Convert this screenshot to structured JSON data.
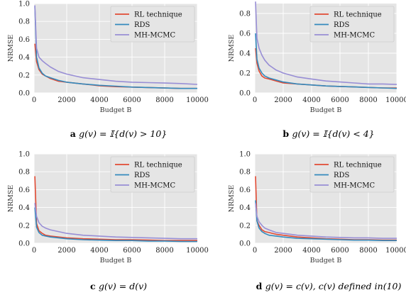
{
  "figure": {
    "colors": {
      "RL technique": "#e24a33",
      "RDS": "#348abd",
      "MH-MCMC": "#988ed5",
      "panel_bg": "#e5e5e5",
      "grid": "#ffffff"
    }
  },
  "chart_data": [
    {
      "type": "line",
      "panel_letter": "a",
      "caption": "g(v) = 𝕀{d(v) > 10}",
      "xlabel": "Budget B",
      "ylabel": "NRMSE",
      "xlim": [
        0,
        10000
      ],
      "ylim": [
        0,
        1.0
      ],
      "xticks": [
        0,
        2000,
        4000,
        6000,
        8000,
        10000
      ],
      "yticks": [
        0.0,
        0.2,
        0.4,
        0.6,
        0.8,
        1.0
      ],
      "ytick_labels": [
        "0.0",
        "0.2",
        "0.4",
        "0.6",
        "0.8",
        "1.0"
      ],
      "grid": true,
      "legend_position": "top-right",
      "series": [
        {
          "name": "RL technique",
          "x": [
            50,
            150,
            300,
            500,
            700,
            1000,
            1500,
            2000,
            3000,
            4000,
            5000,
            6000,
            7000,
            8000,
            9000,
            10000
          ],
          "values": [
            0.55,
            0.35,
            0.26,
            0.21,
            0.19,
            0.16,
            0.13,
            0.12,
            0.1,
            0.08,
            0.07,
            0.065,
            0.06,
            0.055,
            0.05,
            0.05
          ]
        },
        {
          "name": "RDS",
          "x": [
            50,
            150,
            300,
            500,
            700,
            1000,
            1500,
            2000,
            3000,
            4000,
            5000,
            6000,
            7000,
            8000,
            9000,
            10000
          ],
          "values": [
            0.97,
            0.4,
            0.28,
            0.22,
            0.19,
            0.17,
            0.14,
            0.12,
            0.1,
            0.085,
            0.075,
            0.065,
            0.06,
            0.055,
            0.05,
            0.05
          ]
        },
        {
          "name": "MH-MCMC",
          "x": [
            50,
            150,
            300,
            500,
            700,
            1000,
            1500,
            2000,
            3000,
            4000,
            5000,
            6000,
            7000,
            8000,
            9000,
            10000
          ],
          "values": [
            0.98,
            0.5,
            0.4,
            0.36,
            0.33,
            0.29,
            0.24,
            0.21,
            0.17,
            0.15,
            0.13,
            0.12,
            0.115,
            0.11,
            0.105,
            0.095
          ]
        }
      ]
    },
    {
      "type": "line",
      "panel_letter": "b",
      "caption": "g(v) = 𝕀{d(v) < 4}",
      "xlabel": "Budget B",
      "ylabel": "NRMSE",
      "xlim": [
        0,
        10000
      ],
      "ylim": [
        0,
        0.9
      ],
      "xticks": [
        0,
        2000,
        4000,
        6000,
        8000,
        10000
      ],
      "yticks": [
        0.0,
        0.2,
        0.4,
        0.6,
        0.8
      ],
      "ytick_labels": [
        "0.0",
        "0.2",
        "0.4",
        "0.6",
        "0.8"
      ],
      "grid": true,
      "legend_position": "top-right",
      "series": [
        {
          "name": "RL technique",
          "x": [
            50,
            150,
            300,
            500,
            700,
            1000,
            1500,
            2000,
            3000,
            4000,
            5000,
            6000,
            7000,
            8000,
            9000,
            10000
          ],
          "values": [
            0.45,
            0.3,
            0.22,
            0.17,
            0.15,
            0.14,
            0.12,
            0.1,
            0.09,
            0.08,
            0.07,
            0.065,
            0.06,
            0.055,
            0.05,
            0.05
          ]
        },
        {
          "name": "RDS",
          "x": [
            50,
            150,
            300,
            500,
            700,
            1000,
            1500,
            2000,
            3000,
            4000,
            5000,
            6000,
            7000,
            8000,
            9000,
            10000
          ],
          "values": [
            0.6,
            0.34,
            0.25,
            0.2,
            0.17,
            0.15,
            0.13,
            0.11,
            0.09,
            0.08,
            0.07,
            0.065,
            0.06,
            0.055,
            0.05,
            0.045
          ]
        },
        {
          "name": "MH-MCMC",
          "x": [
            50,
            150,
            300,
            500,
            700,
            1000,
            1500,
            2000,
            3000,
            4000,
            5000,
            6000,
            7000,
            8000,
            9000,
            10000
          ],
          "values": [
            0.92,
            0.55,
            0.45,
            0.38,
            0.33,
            0.28,
            0.23,
            0.2,
            0.16,
            0.14,
            0.12,
            0.11,
            0.1,
            0.09,
            0.09,
            0.085
          ]
        }
      ]
    },
    {
      "type": "line",
      "panel_letter": "c",
      "caption": "g(v) = d(v)",
      "xlabel": "Budget B",
      "ylabel": "NRMSE",
      "xlim": [
        0,
        10000
      ],
      "ylim": [
        0,
        1.0
      ],
      "xticks": [
        0,
        2000,
        4000,
        6000,
        8000,
        10000
      ],
      "yticks": [
        0.0,
        0.2,
        0.4,
        0.6,
        0.8,
        1.0
      ],
      "ytick_labels": [
        "0.0",
        "0.2",
        "0.4",
        "0.6",
        "0.8",
        "1.0"
      ],
      "grid": true,
      "legend_position": "top-right",
      "series": [
        {
          "name": "RL technique",
          "x": [
            50,
            150,
            300,
            500,
            700,
            1000,
            1500,
            2000,
            3000,
            4000,
            5000,
            6000,
            7000,
            8000,
            9000,
            10000
          ],
          "values": [
            0.75,
            0.22,
            0.14,
            0.11,
            0.09,
            0.08,
            0.07,
            0.06,
            0.05,
            0.045,
            0.04,
            0.04,
            0.035,
            0.03,
            0.03,
            0.03
          ]
        },
        {
          "name": "RDS",
          "x": [
            50,
            150,
            300,
            500,
            700,
            1000,
            1500,
            2000,
            3000,
            4000,
            5000,
            6000,
            7000,
            8000,
            9000,
            10000
          ],
          "values": [
            0.4,
            0.18,
            0.12,
            0.09,
            0.08,
            0.07,
            0.06,
            0.05,
            0.04,
            0.035,
            0.03,
            0.03,
            0.025,
            0.025,
            0.02,
            0.02
          ]
        },
        {
          "name": "MH-MCMC",
          "x": [
            50,
            150,
            300,
            500,
            700,
            1000,
            1500,
            2000,
            3000,
            4000,
            5000,
            6000,
            7000,
            8000,
            9000,
            10000
          ],
          "values": [
            0.45,
            0.3,
            0.23,
            0.19,
            0.17,
            0.15,
            0.13,
            0.11,
            0.09,
            0.08,
            0.07,
            0.065,
            0.06,
            0.055,
            0.05,
            0.05
          ]
        }
      ]
    },
    {
      "type": "line",
      "panel_letter": "d",
      "caption": "g(v) = c(v), c(v) defined in(10)",
      "xlabel": "Budget B",
      "ylabel": "NRMSE",
      "xlim": [
        0,
        10000
      ],
      "ylim": [
        0,
        1.0
      ],
      "xticks": [
        0,
        2000,
        4000,
        6000,
        8000,
        10000
      ],
      "yticks": [
        0.0,
        0.2,
        0.4,
        0.6,
        0.8,
        1.0
      ],
      "ytick_labels": [
        "0.0",
        "0.2",
        "0.4",
        "0.6",
        "0.8",
        "1.0"
      ],
      "grid": true,
      "legend_position": "top-right",
      "series": [
        {
          "name": "RL technique",
          "x": [
            50,
            150,
            300,
            500,
            700,
            1000,
            1500,
            2000,
            3000,
            4000,
            5000,
            6000,
            7000,
            8000,
            9000,
            10000
          ],
          "values": [
            0.75,
            0.25,
            0.2,
            0.15,
            0.13,
            0.12,
            0.1,
            0.09,
            0.07,
            0.06,
            0.05,
            0.045,
            0.04,
            0.04,
            0.035,
            0.035
          ]
        },
        {
          "name": "RDS",
          "x": [
            50,
            150,
            300,
            500,
            700,
            1000,
            1500,
            2000,
            3000,
            4000,
            5000,
            6000,
            7000,
            8000,
            9000,
            10000
          ],
          "values": [
            0.48,
            0.25,
            0.17,
            0.13,
            0.11,
            0.09,
            0.08,
            0.07,
            0.055,
            0.05,
            0.045,
            0.04,
            0.035,
            0.035,
            0.03,
            0.03
          ]
        },
        {
          "name": "MH-MCMC",
          "x": [
            50,
            150,
            300,
            500,
            700,
            1000,
            1500,
            2000,
            3000,
            4000,
            5000,
            6000,
            7000,
            8000,
            9000,
            10000
          ],
          "values": [
            0.45,
            0.3,
            0.24,
            0.2,
            0.17,
            0.15,
            0.12,
            0.11,
            0.09,
            0.08,
            0.07,
            0.065,
            0.06,
            0.06,
            0.055,
            0.055
          ]
        }
      ]
    }
  ]
}
